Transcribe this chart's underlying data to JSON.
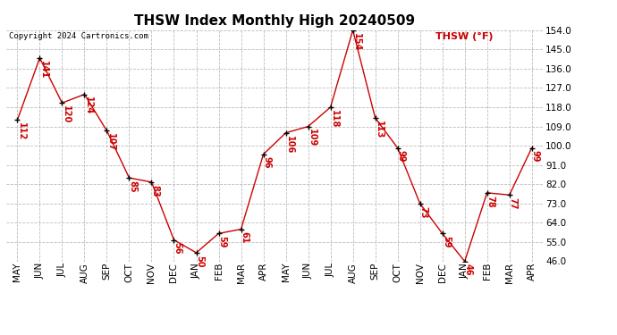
{
  "title": "THSW Index Monthly High 20240509",
  "copyright": "Copyright 2024 Cartronics.com",
  "legend_label": "THSW (°F)",
  "months": [
    "MAY",
    "JUN",
    "JUL",
    "AUG",
    "SEP",
    "OCT",
    "NOV",
    "DEC",
    "JAN",
    "FEB",
    "MAR",
    "APR",
    "MAY",
    "JUN",
    "JUL",
    "AUG",
    "SEP",
    "OCT",
    "NOV",
    "DEC",
    "JAN",
    "FEB",
    "MAR",
    "APR"
  ],
  "values": [
    112,
    141,
    120,
    124,
    107,
    85,
    83,
    56,
    50,
    59,
    61,
    96,
    106,
    109,
    118,
    154,
    113,
    99,
    73,
    59,
    46,
    78,
    77,
    99
  ],
  "ylim": [
    46.0,
    154.0
  ],
  "yticks": [
    46.0,
    55.0,
    64.0,
    73.0,
    82.0,
    91.0,
    100.0,
    109.0,
    118.0,
    127.0,
    136.0,
    145.0,
    154.0
  ],
  "line_color": "#cc0000",
  "marker_color": "#000000",
  "label_color": "#cc0000",
  "background_color": "#ffffff",
  "grid_color": "#bbbbbb",
  "title_color": "#000000",
  "copyright_color": "#000000",
  "legend_color": "#cc0000",
  "title_fontsize": 11,
  "label_fontsize": 7,
  "tick_fontsize": 7.5,
  "copyright_fontsize": 6.5,
  "legend_fontsize": 8
}
